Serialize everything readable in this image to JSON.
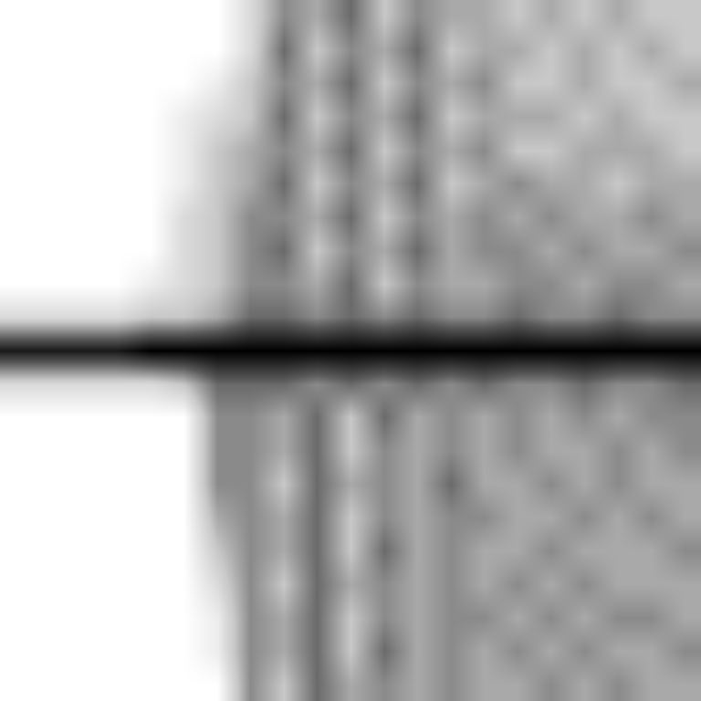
{
  "chart_data": {
    "type": "heatmap",
    "tick_labels": false,
    "xlim": [
      -0.5,
      20.5
    ],
    "ylim": [
      -0.5,
      20.5
    ],
    "zlim": [
      0,
      10
    ],
    "x": [
      0,
      1,
      2,
      3,
      4,
      5,
      6,
      7,
      8,
      9,
      10,
      11,
      12,
      13,
      14,
      15,
      16,
      17,
      18,
      19,
      20
    ],
    "y": [
      20,
      19,
      18,
      17,
      16,
      15,
      14,
      13,
      12,
      11,
      10,
      9,
      8,
      7,
      6,
      5,
      4,
      3,
      2,
      1,
      0
    ],
    "z": [
      [
        0,
        0,
        0,
        0,
        0,
        0,
        0,
        2,
        5,
        4,
        6,
        3,
        5,
        4,
        4,
        3,
        4,
        3,
        4,
        3,
        3
      ],
      [
        0,
        0,
        0,
        0,
        0,
        0,
        0,
        2,
        6,
        3,
        5,
        4,
        6,
        3,
        4,
        4,
        3,
        4,
        3,
        4,
        3
      ],
      [
        0,
        0,
        0,
        0,
        0,
        0,
        1,
        3,
        5,
        4,
        6,
        3,
        5,
        4,
        5,
        3,
        3,
        4,
        3,
        3,
        4
      ],
      [
        0,
        0,
        0,
        0,
        0,
        1,
        2,
        3,
        6,
        3,
        5,
        4,
        6,
        3,
        4,
        4,
        4,
        3,
        4,
        3,
        3
      ],
      [
        0,
        0,
        0,
        0,
        0,
        1,
        3,
        4,
        5,
        4,
        6,
        3,
        5,
        4,
        5,
        3,
        3,
        4,
        4,
        4,
        3
      ],
      [
        0,
        0,
        0,
        0,
        0,
        1,
        3,
        4,
        6,
        3,
        5,
        4,
        6,
        3,
        4,
        5,
        4,
        4,
        3,
        4,
        4
      ],
      [
        0,
        0,
        0,
        0,
        0,
        2,
        3,
        5,
        5,
        4,
        6,
        3,
        5,
        4,
        5,
        4,
        5,
        4,
        4,
        5,
        4
      ],
      [
        0,
        0,
        0,
        0,
        0,
        2,
        3,
        5,
        6,
        3,
        5,
        4,
        6,
        4,
        5,
        5,
        4,
        5,
        4,
        4,
        5
      ],
      [
        0,
        0,
        0,
        0,
        1,
        2,
        3,
        5,
        5,
        4,
        6,
        3,
        5,
        4,
        4,
        5,
        5,
        4,
        5,
        5,
        4
      ],
      [
        2,
        2,
        2,
        2,
        3,
        3,
        4,
        6,
        6,
        5,
        6,
        5,
        6,
        5,
        5,
        6,
        5,
        5,
        6,
        5,
        5
      ],
      [
        9,
        9,
        9,
        9,
        10,
        10,
        10,
        10,
        10,
        10,
        10,
        10,
        10,
        10,
        10,
        10,
        10,
        10,
        10,
        10,
        10
      ],
      [
        2,
        2,
        2,
        2,
        2,
        3,
        6,
        6,
        6,
        5,
        6,
        5,
        6,
        5,
        6,
        5,
        5,
        6,
        5,
        5,
        6
      ],
      [
        0,
        0,
        0,
        0,
        0,
        0,
        5,
        5,
        4,
        6,
        3,
        6,
        4,
        5,
        4,
        5,
        4,
        5,
        4,
        5,
        5
      ],
      [
        0,
        0,
        0,
        0,
        0,
        0,
        5,
        5,
        4,
        6,
        3,
        5,
        4,
        5,
        4,
        5,
        4,
        4,
        5,
        4,
        5
      ],
      [
        0,
        0,
        0,
        0,
        0,
        0,
        5,
        5,
        3,
        6,
        4,
        5,
        4,
        6,
        4,
        4,
        5,
        4,
        5,
        4,
        4
      ],
      [
        0,
        0,
        0,
        0,
        0,
        0,
        4,
        5,
        4,
        6,
        3,
        5,
        4,
        5,
        5,
        4,
        4,
        5,
        4,
        5,
        4
      ],
      [
        0,
        0,
        0,
        0,
        0,
        0,
        3,
        5,
        4,
        6,
        3,
        6,
        4,
        5,
        4,
        4,
        5,
        4,
        4,
        4,
        5
      ],
      [
        0,
        0,
        0,
        0,
        0,
        0,
        2,
        5,
        3,
        6,
        4,
        5,
        4,
        5,
        4,
        5,
        4,
        5,
        4,
        4,
        4
      ],
      [
        0,
        0,
        0,
        0,
        0,
        0,
        1,
        5,
        4,
        6,
        3,
        5,
        4,
        5,
        5,
        4,
        5,
        4,
        5,
        5,
        4
      ],
      [
        0,
        0,
        0,
        0,
        0,
        0,
        1,
        5,
        4,
        6,
        3,
        6,
        4,
        5,
        4,
        5,
        4,
        5,
        4,
        4,
        5
      ],
      [
        0,
        0,
        0,
        0,
        0,
        0,
        0,
        5,
        3,
        6,
        4,
        5,
        4,
        5,
        4,
        4,
        5,
        4,
        5,
        4,
        4
      ]
    ]
  }
}
